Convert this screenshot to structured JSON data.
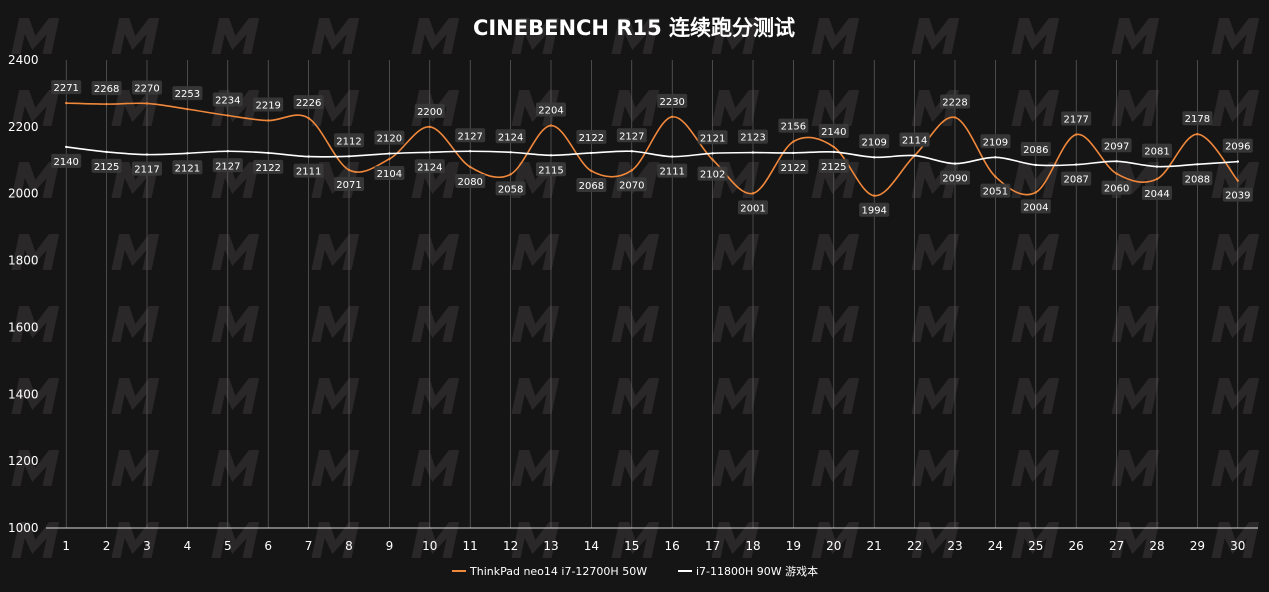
{
  "colors": {
    "background": "#161515",
    "watermark": "#2a2828",
    "grid": "#6e6e6e",
    "axis": "#d9d9d9",
    "text": "#ffffff",
    "label_box": "#3a3a3a",
    "series_orange": "#f0883c",
    "series_white": "#ffffff"
  },
  "chart_data": {
    "type": "line",
    "title": "CINEBENCH R15 连续跑分测试",
    "x": [
      1,
      2,
      3,
      4,
      5,
      6,
      7,
      8,
      9,
      10,
      11,
      12,
      13,
      14,
      15,
      16,
      17,
      18,
      19,
      20,
      21,
      22,
      23,
      24,
      25,
      26,
      27,
      28,
      29,
      30
    ],
    "ylim": [
      1000,
      2400
    ],
    "yticks": [
      1000,
      1200,
      1400,
      1600,
      1800,
      2000,
      2200,
      2400
    ],
    "grid": "vertical lines at each x category",
    "legend_position": "bottom-center",
    "series": [
      {
        "name": "ThinkPad neo14 i7-12700H 50W",
        "color": "#f0883c",
        "values": [
          2271,
          2268,
          2270,
          2253,
          2234,
          2219,
          2226,
          2071,
          2104,
          2200,
          2080,
          2058,
          2204,
          2068,
          2070,
          2230,
          2102,
          2001,
          2156,
          2140,
          1994,
          2114,
          2228,
          2051,
          2004,
          2177,
          2060,
          2044,
          2178,
          2039
        ]
      },
      {
        "name": "i7-11800H 90W 游戏本",
        "color": "#ffffff",
        "values": [
          2140,
          2125,
          2117,
          2121,
          2127,
          2122,
          2111,
          2112,
          2120,
          2124,
          2127,
          2124,
          2115,
          2122,
          2127,
          2111,
          2121,
          2123,
          2122,
          2125,
          2109,
          2114,
          2090,
          2109,
          2086,
          2087,
          2097,
          2081,
          2088,
          2096
        ]
      }
    ]
  }
}
